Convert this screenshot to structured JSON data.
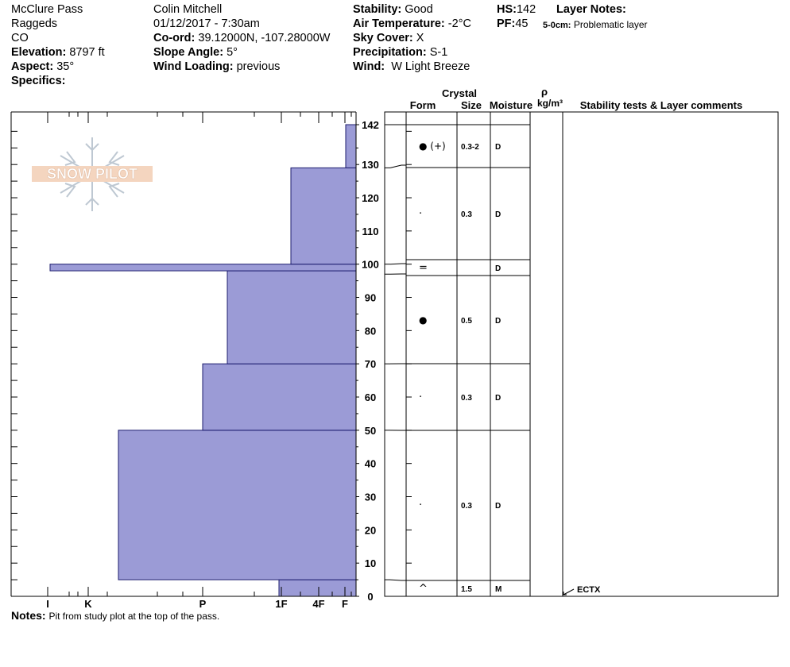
{
  "header": {
    "location": "McClure Pass",
    "range": "Raggeds",
    "state": "CO",
    "elevation_label": "Elevation:",
    "elevation": "8797 ft",
    "aspect_label": "Aspect:",
    "aspect": "35°",
    "specifics_label": "Specifics:",
    "observer": "Colin Mitchell",
    "datetime": "01/12/2017 - 7:30am",
    "coord_label": "Co-ord:",
    "coord": "39.12000N, -107.28000W",
    "slope_label": "Slope Angle:",
    "slope": "5°",
    "wind_loading_label": "Wind Loading:",
    "wind_loading": "previous",
    "stability_label": "Stability:",
    "stability": "Good",
    "air_temp_label": "Air Temperature:",
    "air_temp": "-2°C",
    "sky_label": "Sky Cover:",
    "sky": "X",
    "precip_label": "Precipitation:",
    "precip": "S-1",
    "wind_label": "Wind:",
    "wind": "W Light Breeze",
    "hs_label": "HS:",
    "hs": "142",
    "pf_label": "PF:",
    "pf": "45",
    "layer_notes_label": "Layer Notes:",
    "layer_note_depth": "5-0cm:",
    "layer_note_text": "Problematic layer"
  },
  "logo_text": "SNOW PILOT",
  "notes": {
    "label": "Notes:",
    "text": "Pit from study plot at the top of the pass."
  },
  "table_headers": {
    "crystal": "Crystal",
    "form": "Form",
    "size": "Size",
    "moisture": "Moisture",
    "rho": "ρ",
    "density_unit": "kg/m³",
    "stability": "Stability tests & Layer comments"
  },
  "colors": {
    "hardness_fill": "#9b9bd6",
    "grid": "#000000"
  },
  "chart_data": {
    "type": "bar",
    "orientation": "horizontal",
    "y_axis": {
      "range": [
        0,
        145
      ],
      "ticks": [
        0,
        10,
        20,
        30,
        40,
        50,
        60,
        70,
        80,
        90,
        100,
        110,
        120,
        130,
        142
      ]
    },
    "hardness_scale": [
      "I",
      "K",
      "P",
      "1F",
      "4F",
      "F"
    ],
    "hardness_profile": [
      {
        "bottom": 0,
        "top": 5,
        "hardness": "1F"
      },
      {
        "bottom": 5,
        "top": 50,
        "hardness": "K-P"
      },
      {
        "bottom": 50,
        "top": 70,
        "hardness": "P"
      },
      {
        "bottom": 70,
        "top": 98,
        "hardness": "P-1F"
      },
      {
        "bottom": 98,
        "top": 100,
        "hardness": "I+"
      },
      {
        "bottom": 100,
        "top": 129,
        "hardness": "1F-4F"
      },
      {
        "bottom": 129,
        "top": 142,
        "hardness": "F+"
      }
    ],
    "layers": [
      {
        "bottom": 129,
        "top": 142,
        "form": "● (+)",
        "size": "0.3-2",
        "moisture": "D"
      },
      {
        "bottom": 100,
        "top": 129,
        "form": "·",
        "size": "0.3",
        "moisture": "D"
      },
      {
        "bottom": 97,
        "top": 100,
        "form": "=",
        "size": "",
        "moisture": "D"
      },
      {
        "bottom": 70,
        "top": 97,
        "form": "●",
        "size": "0.5",
        "moisture": "D"
      },
      {
        "bottom": 50,
        "top": 70,
        "form": "·",
        "size": "0.3",
        "moisture": "D"
      },
      {
        "bottom": 5,
        "top": 50,
        "form": "·",
        "size": "0.3",
        "moisture": "D"
      },
      {
        "bottom": 0,
        "top": 5,
        "form": "^",
        "size": "1.5",
        "moisture": "M"
      }
    ],
    "stability_tests": [
      {
        "depth": 0,
        "label": "ECTX"
      }
    ]
  }
}
